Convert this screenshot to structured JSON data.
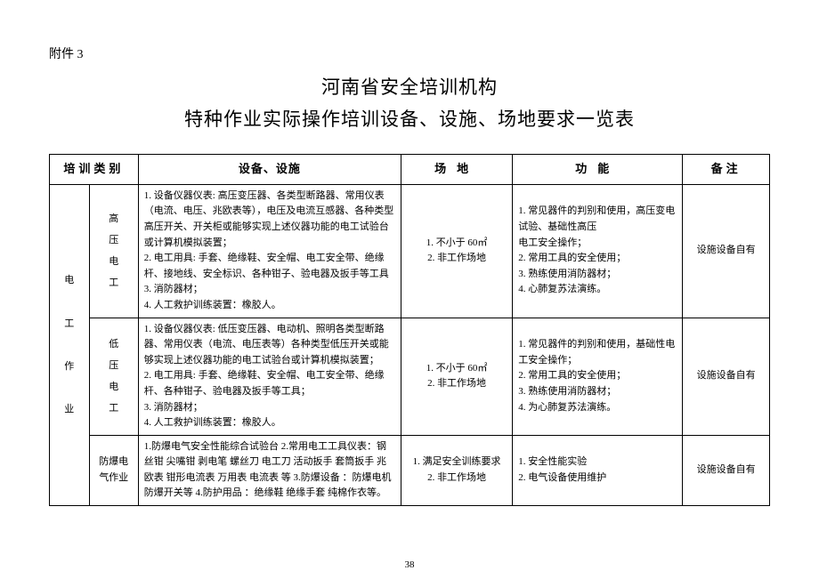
{
  "attachment_label": "附件 3",
  "title_line1": "河南省安全培训机构",
  "title_line2": "特种作业实际操作培训设备、设施、场地要求一览表",
  "page_number": "38",
  "headers": {
    "category": "培训类别",
    "equipment": "设备、设施",
    "site": "场地",
    "function": "功能",
    "note": "备注"
  },
  "rows": {
    "r1": {
      "cat1": "电\n\n工\n\n作\n\n业",
      "cat2": "高\n压\n电\n工",
      "equipment": "1. 设备仪器仪表: 高压变压器、各类型断路器、常用仪表（电流、电压、兆欧表等），电压及电流互感器、各种类型高压开关、开关柜或能够实现上述仪器功能的电工试验台或计算机模拟装置；\n2. 电工用具: 手套、绝缘鞋、安全帽、电工安全带、绝缘杆、接地线、安全标识、各种钳子、验电器及扳手等工具\n3. 消防器材；\n4. 人工救护训练装置：橡胶人。",
      "site": "1. 不小于 60㎡\n2. 非工作场地",
      "function": "1. 常见器件的判别和使用，高压变电试验、基础性高压\n电工安全操作；\n2. 常用工具的安全使用；\n3. 熟练使用消防器材；\n4. 心肺复苏法演练。",
      "note": "设施设备自有"
    },
    "r2": {
      "cat2": "低\n压\n电\n工",
      "equipment": "1. 设备仪器仪表: 低压变压器、电动机、照明各类型断路器、常用仪表（电流、电压表等）各种类型低压开关或能够实现上述仪器功能的电工试验台或计算机模拟装置；\n2. 电工用具: 手套、绝缘鞋、安全帽、电工安全带、绝缘杆、各种钳子、验电器及扳手等工具；\n3. 消防器材；\n4. 人工救护训练装置：橡胶人。",
      "site": "1. 不小于 60㎡\n2. 非工作场地",
      "function": "1. 常见器件的判别和使用，基础性电工安全操作；\n2. 常用工具的安全使用；\n3. 熟练使用消防器材；\n4. 为心肺复苏法演练。",
      "note": "设施设备自有"
    },
    "r3": {
      "cat2": "防爆电气作业",
      "equipment": "1.防爆电气安全性能综合试验台 2.常用电工工具仪表：钢丝钳 尖嘴钳 剥电笔 螺丝刀 电工刀 活动扳手 套筒扳手 兆欧表 钳形电流表 万用表   电流表  等 3.防爆设备 ：防爆电机 防爆开关等 4.防护用品 ：绝缘鞋 绝缘手套 纯棉作衣等。",
      "site": "1. 满足安全训练要求\n2. 非工作场地",
      "function": "1. 安全性能实验\n2. 电气设备使用维护",
      "note": "设施设备自有"
    }
  }
}
